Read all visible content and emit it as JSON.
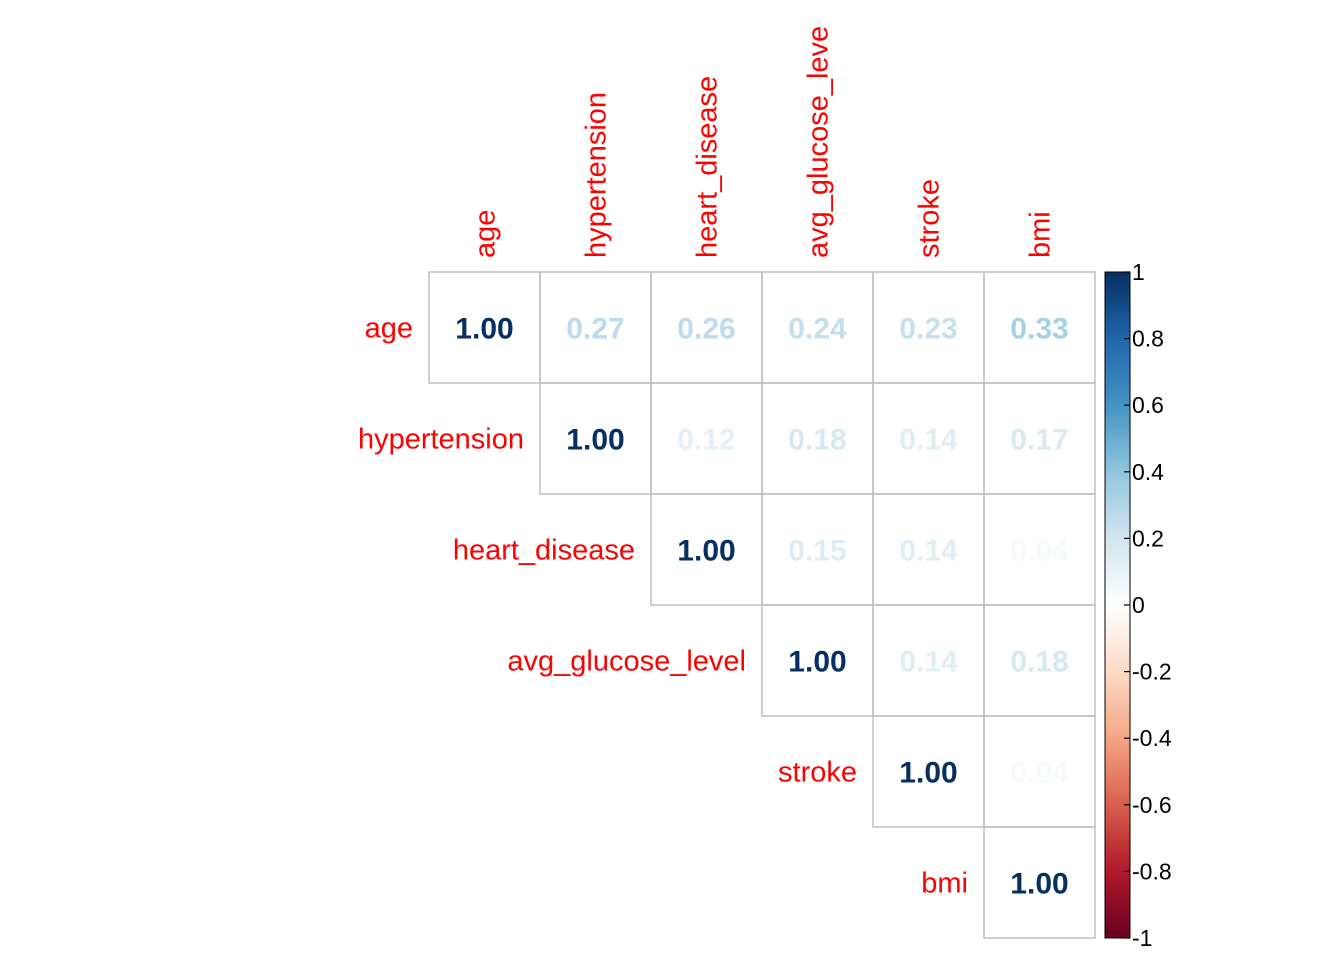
{
  "chart_data": {
    "type": "heatmap",
    "style": "upper-triangle correlation matrix, numeric display",
    "variables": [
      "age",
      "hypertension",
      "heart_disease",
      "avg_glucose_level",
      "stroke",
      "bmi"
    ],
    "column_labels": [
      "age",
      "hypertension",
      "heart_disease",
      "avg_glucose_leve",
      "stroke",
      "bmi"
    ],
    "row_labels": [
      "age",
      "hypertension",
      "heart_disease",
      "avg_glucose_level",
      "stroke",
      "bmi"
    ],
    "matrix": [
      [
        1.0,
        0.27,
        0.26,
        0.24,
        0.23,
        0.33
      ],
      [
        null,
        1.0,
        0.12,
        0.18,
        0.14,
        0.17
      ],
      [
        null,
        null,
        1.0,
        0.15,
        0.14,
        0.04
      ],
      [
        null,
        null,
        null,
        1.0,
        0.14,
        0.18
      ],
      [
        null,
        null,
        null,
        null,
        1.0,
        0.04
      ],
      [
        null,
        null,
        null,
        null,
        null,
        1.0
      ]
    ],
    "color_scale": {
      "min": -1,
      "max": 1,
      "ticks": [
        "1",
        "0.8",
        "0.6",
        "0.4",
        "0.2",
        "0",
        "-0.2",
        "-0.4",
        "-0.6",
        "-0.8",
        "-1"
      ],
      "stops": [
        {
          "value": -1.0,
          "color": "#67001f"
        },
        {
          "value": -0.8,
          "color": "#b2182b"
        },
        {
          "value": -0.6,
          "color": "#d6604d"
        },
        {
          "value": -0.4,
          "color": "#f4a582"
        },
        {
          "value": -0.2,
          "color": "#fddbc7"
        },
        {
          "value": 0.0,
          "color": "#ffffff"
        },
        {
          "value": 0.2,
          "color": "#d1e5f0"
        },
        {
          "value": 0.4,
          "color": "#92c5de"
        },
        {
          "value": 0.6,
          "color": "#4393c3"
        },
        {
          "value": 0.8,
          "color": "#2166ac"
        },
        {
          "value": 1.0,
          "color": "#053061"
        }
      ]
    },
    "label_color": "#ff0000",
    "grid_color": "#bfbfbf",
    "legend_position": "right"
  }
}
